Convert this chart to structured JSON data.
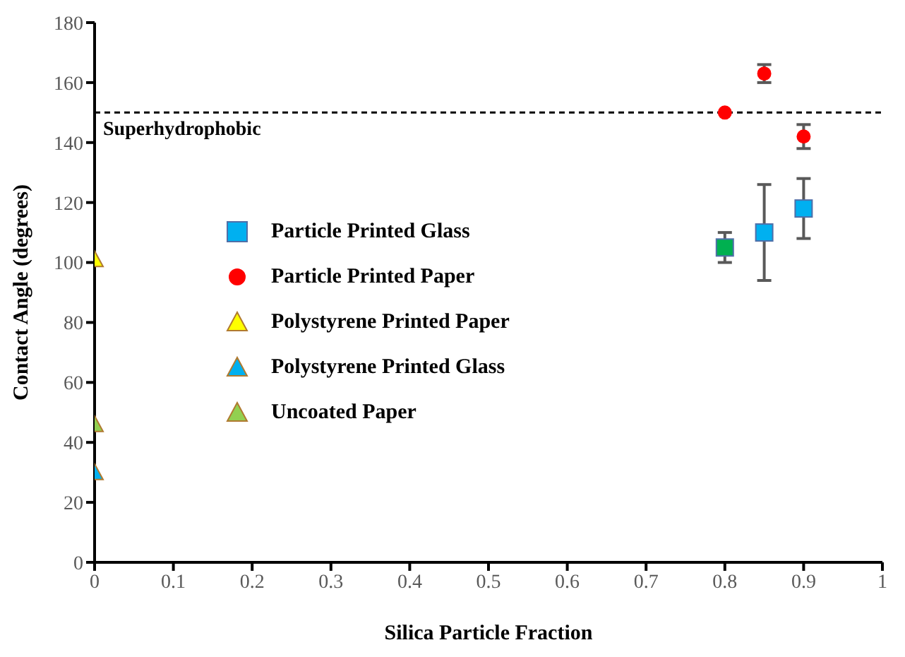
{
  "chart_data": {
    "type": "scatter",
    "xlabel": "Silica Particle Fraction",
    "ylabel": "Contact Angle (degrees)",
    "xlim": [
      0,
      1
    ],
    "xticks": [
      0,
      0.1,
      0.2,
      0.3,
      0.4,
      0.5,
      0.6,
      0.7,
      0.8,
      0.9,
      1
    ],
    "ylim": [
      0,
      180
    ],
    "yticks": [
      0,
      20,
      40,
      60,
      80,
      100,
      120,
      140,
      160,
      180
    ],
    "grid": false,
    "legend": "left",
    "ref_lines": [
      {
        "axis": "y",
        "value": 150,
        "label": "Superhydrophobic",
        "color": "#000000",
        "line_style": "dashed"
      }
    ],
    "series": [
      {
        "name": "Particle Printed Glass",
        "marker": "square",
        "color": "#00b0f0",
        "colors": [
          "#00b050",
          "#00b0f0",
          "#00b0f0"
        ],
        "x": [
          0.8,
          0.85,
          0.9
        ],
        "values": [
          105,
          110,
          118
        ],
        "errors": [
          5,
          16,
          10
        ]
      },
      {
        "name": "Particle Printed Paper",
        "marker": "circle",
        "color": "#ff0000",
        "x": [
          0.8,
          0.85,
          0.9
        ],
        "values": [
          150,
          163,
          142
        ],
        "errors": [
          null,
          3,
          4
        ]
      },
      {
        "name": "Polystyrene Printed Paper",
        "marker": "triangle",
        "color": "#ffff00",
        "x": [
          0
        ],
        "values": [
          101
        ]
      },
      {
        "name": "Polystyrene Printed Glass",
        "marker": "triangle",
        "color": "#00b0f0",
        "x": [
          0
        ],
        "values": [
          30
        ]
      },
      {
        "name": "Uncoated Paper",
        "marker": "triangle",
        "color": "#92d050",
        "x": [
          0
        ],
        "values": [
          46
        ]
      }
    ]
  }
}
